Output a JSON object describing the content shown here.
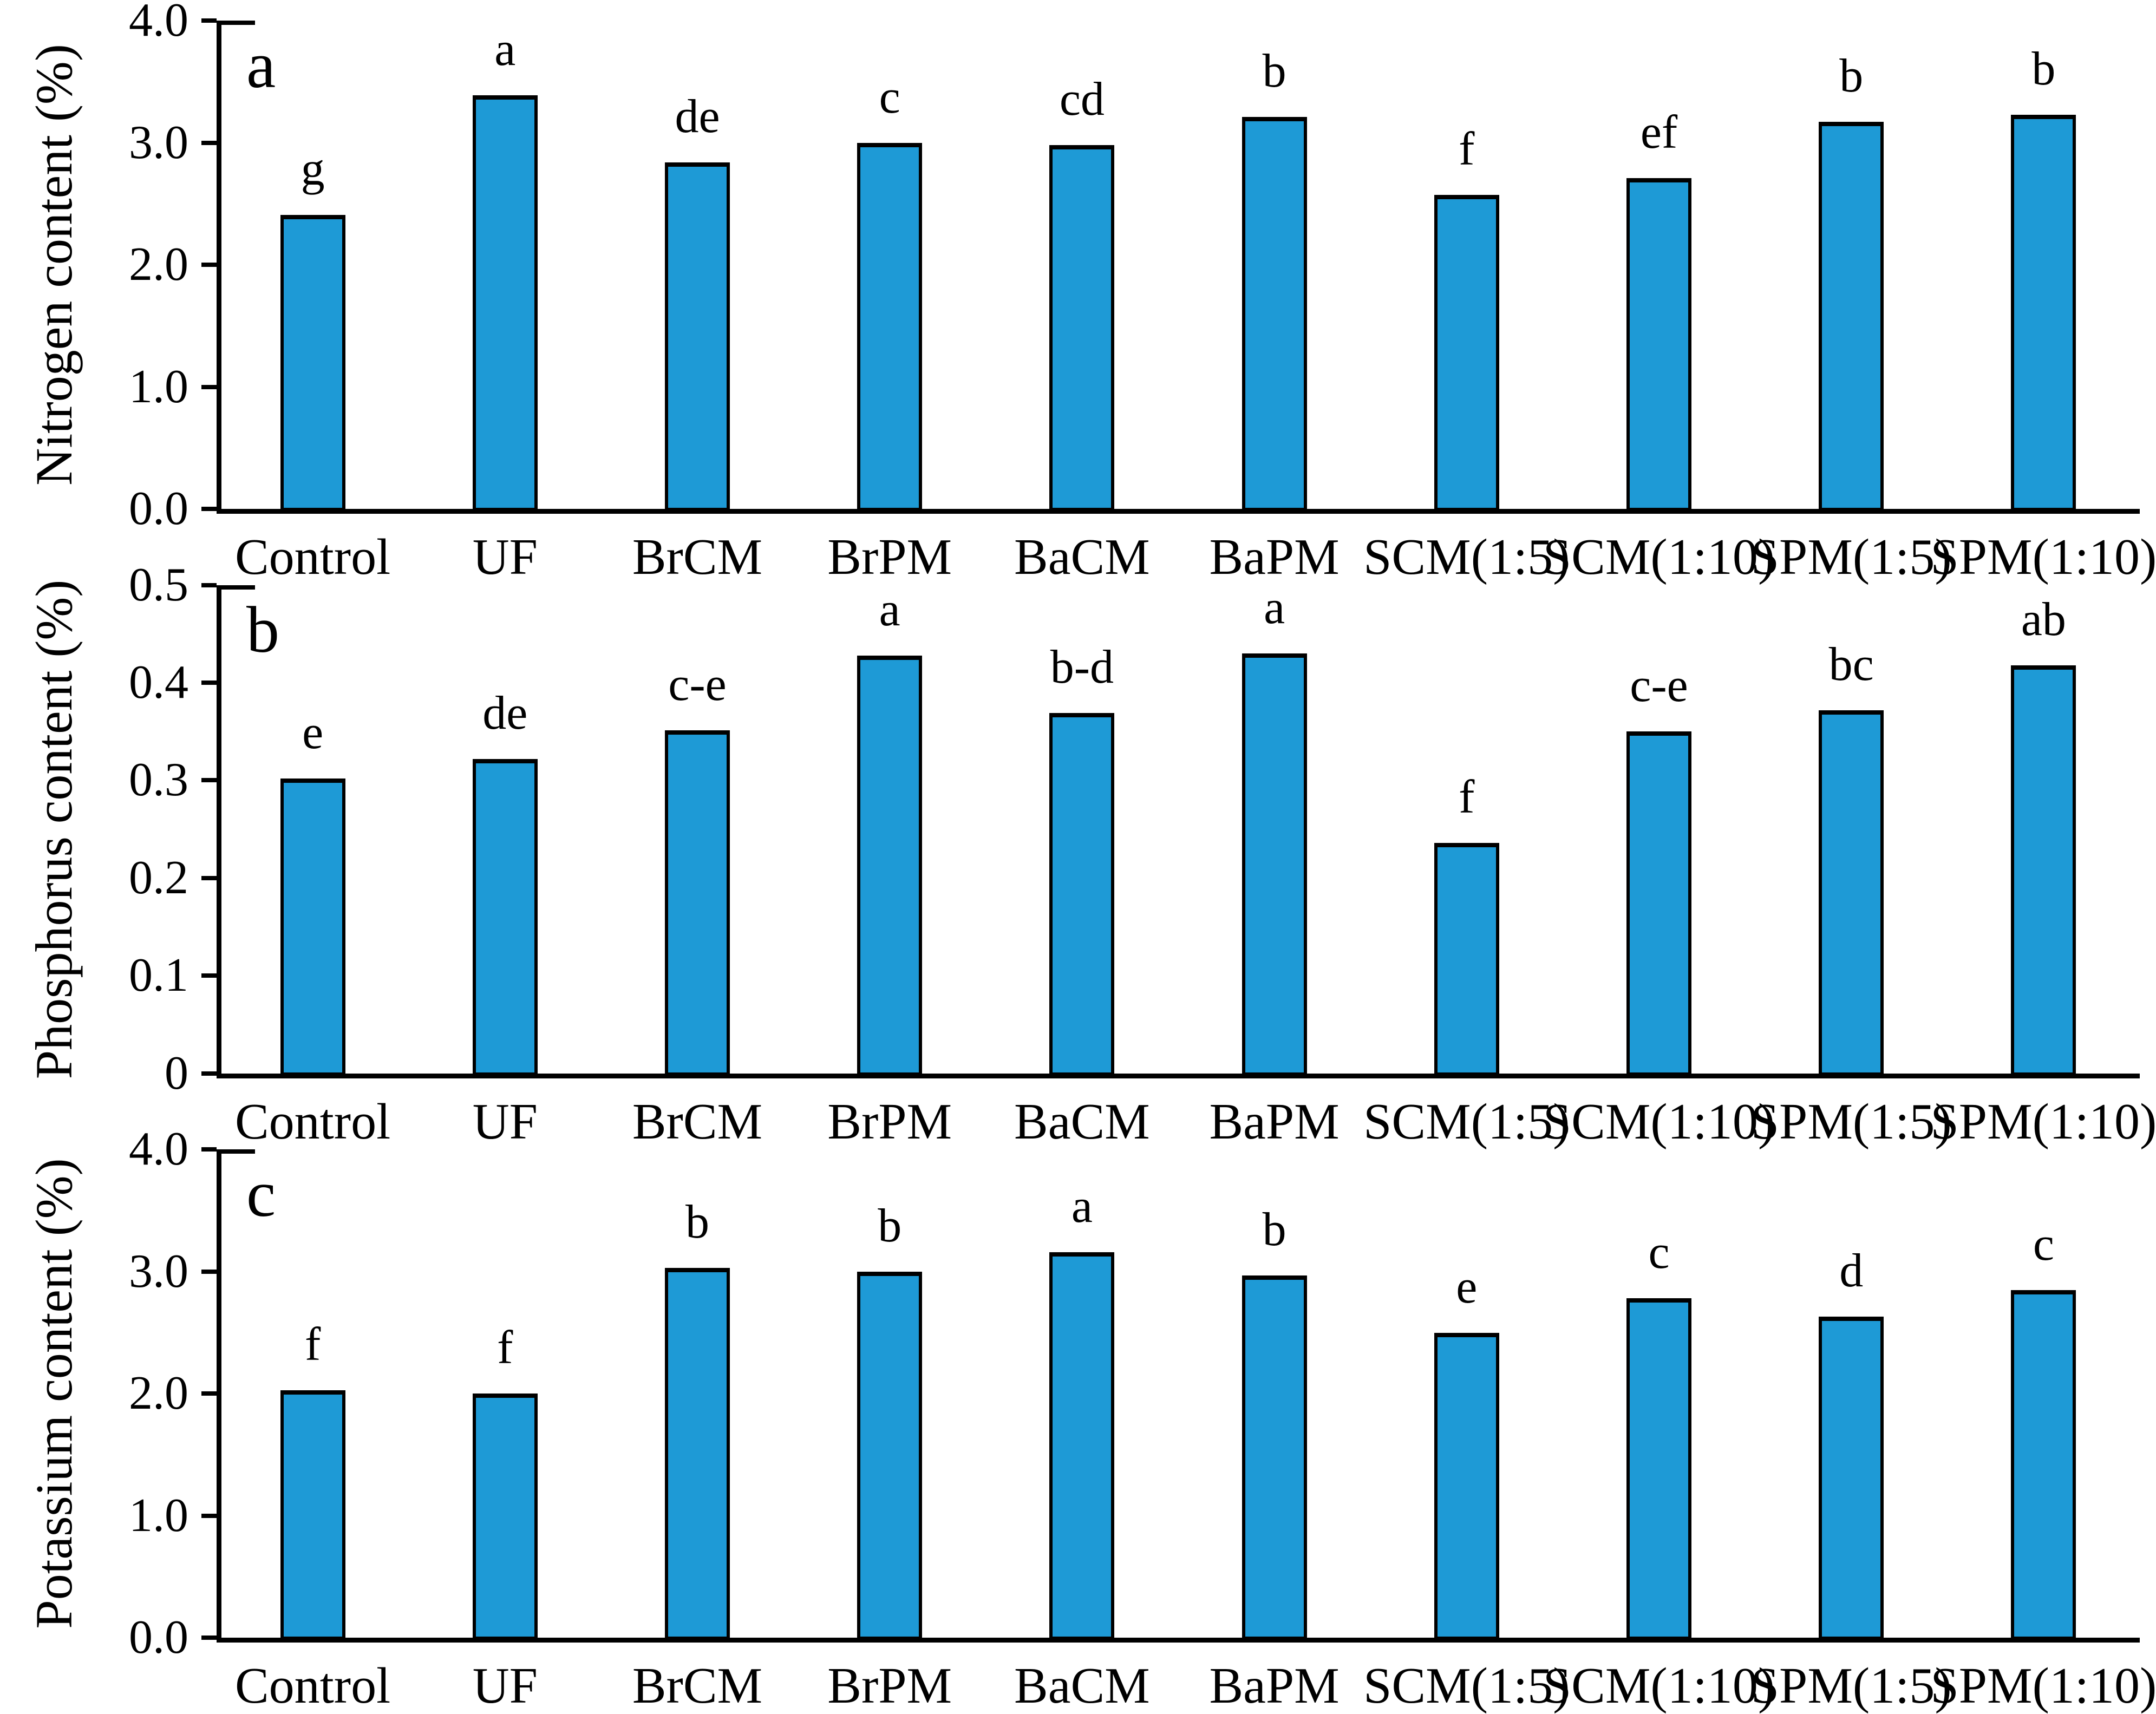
{
  "style": {
    "bar_fill": "#1E9AD6",
    "bar_outline": "#000000",
    "axis_color": "#000000",
    "text_color": "#000000"
  },
  "chart_data": [
    {
      "type": "bar",
      "panel_letter": "a",
      "ylabel": "Nitrogen content (%)",
      "xlabel": "",
      "ylim": [
        0,
        4
      ],
      "ytick_labels": [
        "0.0",
        "1.0",
        "2.0",
        "3.0",
        "4.0"
      ],
      "ytick_values": [
        0,
        1,
        2,
        3,
        4
      ],
      "grid": "off",
      "legend": "none",
      "categories": [
        "Control",
        "UF",
        "BrCM",
        "BrPM",
        "BaCM",
        "BaPM",
        "SCM(1:5)",
        "SCM(1:10)",
        "SPM(1:5)",
        "SPM(1:10)"
      ],
      "values": [
        2.41,
        3.39,
        2.84,
        3.0,
        2.98,
        3.21,
        2.57,
        2.71,
        3.17,
        3.23
      ],
      "bar_letters": [
        "g",
        "a",
        "de",
        "c",
        "cd",
        "b",
        "f",
        "ef",
        "b",
        "b"
      ]
    },
    {
      "type": "bar",
      "panel_letter": "b",
      "ylabel": "Phosphorus content (%)",
      "xlabel": "",
      "ylim": [
        0,
        0.5
      ],
      "ytick_labels": [
        "0",
        "0.1",
        "0.2",
        "0.3",
        "0.4",
        "0.5"
      ],
      "ytick_values": [
        0,
        0.1,
        0.2,
        0.3,
        0.4,
        0.5
      ],
      "grid": "off",
      "legend": "none",
      "categories": [
        "Control",
        "UF",
        "BrCM",
        "BrPM",
        "BaCM",
        "BaPM",
        "SCM(1:5)",
        "SCM(1:10)",
        "SPM(1:5)",
        "SPM(1:10)"
      ],
      "values": [
        0.302,
        0.322,
        0.351,
        0.428,
        0.369,
        0.43,
        0.236,
        0.35,
        0.372,
        0.418
      ],
      "bar_letters": [
        "e",
        "de",
        "c-e",
        "a",
        "b-d",
        "a",
        "f",
        "c-e",
        "bc",
        "ab"
      ]
    },
    {
      "type": "bar",
      "panel_letter": "c",
      "ylabel": "Potassium content (%)",
      "xlabel": "",
      "ylim": [
        0,
        4
      ],
      "ytick_labels": [
        "0.0",
        "1.0",
        "2.0",
        "3.0",
        "4.0"
      ],
      "ytick_values": [
        0,
        1,
        2,
        3,
        4
      ],
      "grid": "off",
      "legend": "none",
      "categories": [
        "Control",
        "UF",
        "BrCM",
        "BrPM",
        "BaCM",
        "BaPM",
        "SCM(1:5)",
        "SCM(1:10)",
        "SPM(1:5)",
        "SPM(1:10)"
      ],
      "values": [
        2.03,
        2.0,
        3.03,
        3.0,
        3.16,
        2.97,
        2.5,
        2.78,
        2.63,
        2.85
      ],
      "bar_letters": [
        "f",
        "f",
        "b",
        "b",
        "a",
        "b",
        "e",
        "c",
        "d",
        "c"
      ]
    }
  ]
}
